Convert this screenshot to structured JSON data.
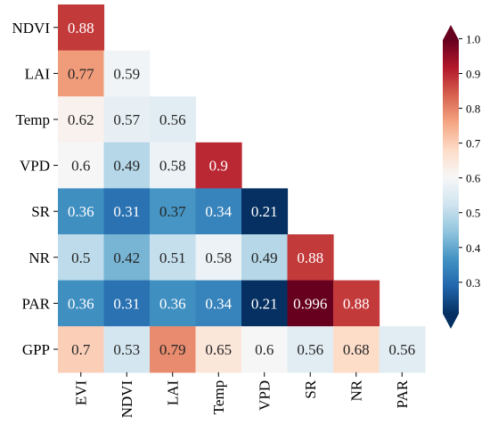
{
  "chart_data": {
    "type": "heatmap",
    "title": "",
    "xlabel": "",
    "ylabel": "",
    "x_categories": [
      "EVI",
      "NDVI",
      "LAI",
      "Temp",
      "VPD",
      "SR",
      "NR",
      "PAR"
    ],
    "y_categories": [
      "NDVI",
      "LAI",
      "Temp",
      "VPD",
      "SR",
      "NR",
      "PAR",
      "GPP"
    ],
    "layout_note": "lower-triangular correlation matrix",
    "values": [
      [
        0.88,
        null,
        null,
        null,
        null,
        null,
        null,
        null
      ],
      [
        0.77,
        0.59,
        null,
        null,
        null,
        null,
        null,
        null
      ],
      [
        0.62,
        0.57,
        0.56,
        null,
        null,
        null,
        null,
        null
      ],
      [
        0.6,
        0.49,
        0.58,
        0.9,
        null,
        null,
        null,
        null
      ],
      [
        0.36,
        0.31,
        0.37,
        0.34,
        0.21,
        null,
        null,
        null
      ],
      [
        0.5,
        0.42,
        0.51,
        0.58,
        0.49,
        0.88,
        null,
        null
      ],
      [
        0.36,
        0.31,
        0.36,
        0.34,
        0.21,
        0.996,
        0.88,
        null
      ],
      [
        0.7,
        0.53,
        0.79,
        0.65,
        0.6,
        0.56,
        0.68,
        0.56
      ]
    ],
    "labels": [
      [
        "0.88",
        null,
        null,
        null,
        null,
        null,
        null,
        null
      ],
      [
        "0.77",
        "0.59",
        null,
        null,
        null,
        null,
        null,
        null
      ],
      [
        "0.62",
        "0.57",
        "0.56",
        null,
        null,
        null,
        null,
        null
      ],
      [
        "0.6",
        "0.49",
        "0.58",
        "0.9",
        null,
        null,
        null,
        null
      ],
      [
        "0.36",
        "0.31",
        "0.37",
        "0.34",
        "0.21",
        null,
        null,
        null
      ],
      [
        "0.5",
        "0.42",
        "0.51",
        "0.58",
        "0.49",
        "0.88",
        null,
        null
      ],
      [
        "0.36",
        "0.31",
        "0.36",
        "0.34",
        "0.21",
        "0.996",
        "0.88",
        null
      ],
      [
        "0.7",
        "0.53",
        "0.79",
        "0.65",
        "0.6",
        "0.56",
        "0.68",
        "0.56"
      ]
    ],
    "colormap": "RdBu_r",
    "colorbar": {
      "range": [
        0.21,
        0.996
      ],
      "ticks": [
        0.3,
        0.4,
        0.5,
        0.6,
        0.7,
        0.8,
        0.9,
        1.0
      ],
      "tick_labels": [
        "0.3",
        "0.4",
        "0.5",
        "0.6",
        "0.7",
        "0.8",
        "0.9",
        "1.0"
      ],
      "extend": "both"
    }
  }
}
